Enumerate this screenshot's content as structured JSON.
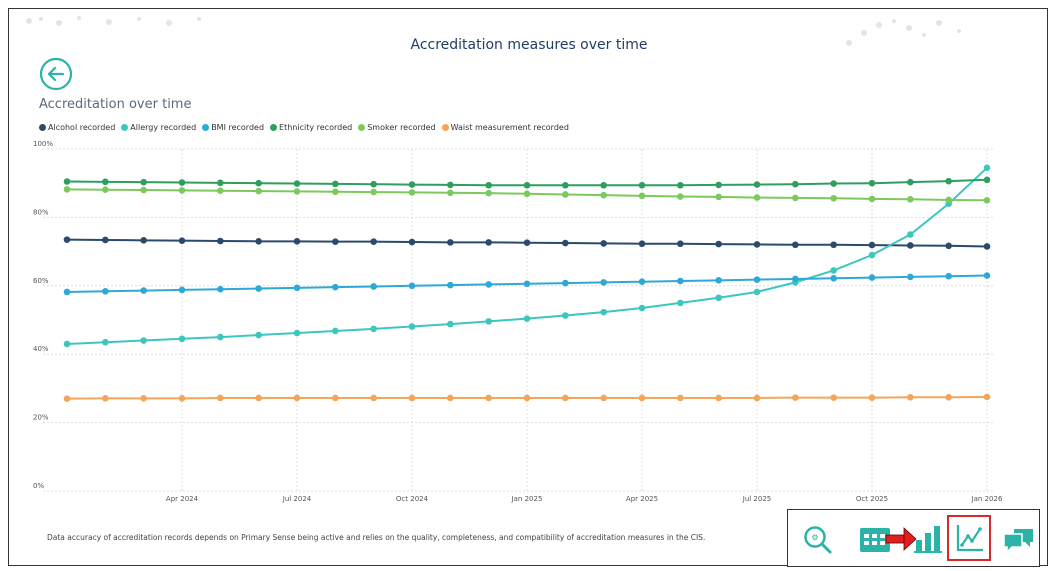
{
  "page": {
    "title": "Accreditation measures over time",
    "section_title": "Accreditation over time",
    "footnote": "Data accuracy of accreditation records depends on Primary Sense being active and relies on the quality, completeness, and compatibility of accreditation measures in the CIS."
  },
  "toolbar": {
    "items": [
      "search-icon",
      "calendar-icon",
      "bar-chart-icon",
      "line-chart-icon",
      "chat-icon"
    ],
    "selected": "line-chart-icon",
    "accent_color": "#2bb3a8",
    "highlight_color": "#d42a2a"
  },
  "chart_data": {
    "type": "line",
    "title": "",
    "xlabel": "",
    "ylabel": "",
    "x_tick_labels": [
      "Apr 2024",
      "Jul 2024",
      "Oct 2024",
      "Jan 2025",
      "Apr 2025",
      "Jul 2025",
      "Oct 2025",
      "Jan 2026"
    ],
    "y_tick_labels": [
      "0%",
      "20%",
      "40%",
      "60%",
      "80%",
      "100%"
    ],
    "ylim": [
      0,
      100
    ],
    "grid": true,
    "legend_position": "top-left",
    "x": [
      "Jan 2024",
      "Feb 2024",
      "Mar 2024",
      "Apr 2024",
      "May 2024",
      "Jun 2024",
      "Jul 2024",
      "Aug 2024",
      "Sep 2024",
      "Oct 2024",
      "Nov 2024",
      "Dec 2024",
      "Jan 2025",
      "Feb 2025",
      "Mar 2025",
      "Apr 2025",
      "May 2025",
      "Jun 2025",
      "Jul 2025",
      "Aug 2025",
      "Sep 2025",
      "Oct 2025",
      "Nov 2025",
      "Dec 2025",
      "Jan 2026"
    ],
    "series": [
      {
        "name": "Alcohol recorded",
        "color": "#2c4a6e",
        "values": [
          73.5,
          73.4,
          73.3,
          73.2,
          73.1,
          73.0,
          73.0,
          72.9,
          72.9,
          72.8,
          72.7,
          72.7,
          72.6,
          72.5,
          72.4,
          72.3,
          72.3,
          72.2,
          72.1,
          72.0,
          72.0,
          71.9,
          71.8,
          71.7,
          71.5
        ]
      },
      {
        "name": "Allergy recorded",
        "color": "#3cc7be",
        "values": [
          43,
          43.5,
          44,
          44.5,
          45,
          45.6,
          46.2,
          46.8,
          47.4,
          48.1,
          48.8,
          49.6,
          50.4,
          51.3,
          52.3,
          53.5,
          55.0,
          56.5,
          58.2,
          61,
          64.5,
          69,
          75,
          84,
          94.5
        ]
      },
      {
        "name": "BMI recorded",
        "color": "#2ea9d6",
        "values": [
          58.2,
          58.4,
          58.6,
          58.8,
          59.0,
          59.2,
          59.4,
          59.6,
          59.8,
          60.0,
          60.2,
          60.4,
          60.6,
          60.8,
          61.0,
          61.2,
          61.4,
          61.6,
          61.8,
          62.0,
          62.2,
          62.4,
          62.6,
          62.8,
          63.0
        ]
      },
      {
        "name": "Ethnicity recorded",
        "color": "#2f9e5e",
        "values": [
          90.5,
          90.4,
          90.3,
          90.2,
          90.1,
          90.0,
          89.9,
          89.8,
          89.7,
          89.6,
          89.5,
          89.4,
          89.4,
          89.4,
          89.4,
          89.4,
          89.4,
          89.5,
          89.6,
          89.7,
          89.9,
          90.0,
          90.3,
          90.6,
          91.0
        ]
      },
      {
        "name": "Smoker recorded",
        "color": "#7cc95e",
        "values": [
          88.2,
          88.1,
          88.0,
          87.9,
          87.8,
          87.7,
          87.6,
          87.5,
          87.4,
          87.3,
          87.2,
          87.1,
          86.9,
          86.7,
          86.5,
          86.3,
          86.1,
          86.0,
          85.8,
          85.7,
          85.6,
          85.4,
          85.3,
          85.1,
          85.0
        ]
      },
      {
        "name": "Waist measurement recorded",
        "color": "#f5a55a",
        "values": [
          27.0,
          27.1,
          27.1,
          27.1,
          27.2,
          27.2,
          27.2,
          27.2,
          27.2,
          27.2,
          27.2,
          27.2,
          27.2,
          27.2,
          27.2,
          27.2,
          27.2,
          27.2,
          27.2,
          27.3,
          27.3,
          27.3,
          27.4,
          27.4,
          27.5
        ]
      }
    ]
  }
}
